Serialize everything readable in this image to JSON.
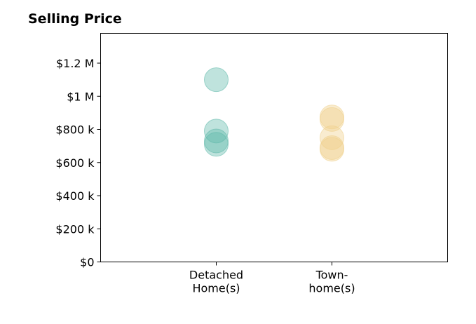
{
  "chart_data": {
    "type": "scatter",
    "title": "Selling Price",
    "xlabel": "",
    "ylabel": "",
    "categories": [
      [
        "Detached",
        "Home(s)"
      ],
      [
        "Town-",
        "home(s)"
      ]
    ],
    "y_ticks": [
      {
        "value": 0,
        "label": "$0"
      },
      {
        "value": 200000,
        "label": "$200 k"
      },
      {
        "value": 400000,
        "label": "$400 k"
      },
      {
        "value": 600000,
        "label": "$600 k"
      },
      {
        "value": 800000,
        "label": "$800 k"
      },
      {
        "value": 1000000,
        "label": "$1 M"
      },
      {
        "value": 1200000,
        "label": "$1.2 M"
      }
    ],
    "ylim": [
      0,
      1380000
    ],
    "xlim": [
      -1,
      2
    ],
    "grid": false,
    "series": [
      {
        "category_index": 0,
        "color": "#5fb8aa",
        "values": [
          1100000,
          790000,
          730000,
          710000
        ]
      },
      {
        "category_index": 1,
        "color": "#efd08a",
        "values": [
          875000,
          860000,
          750000,
          690000,
          680000
        ]
      }
    ]
  }
}
